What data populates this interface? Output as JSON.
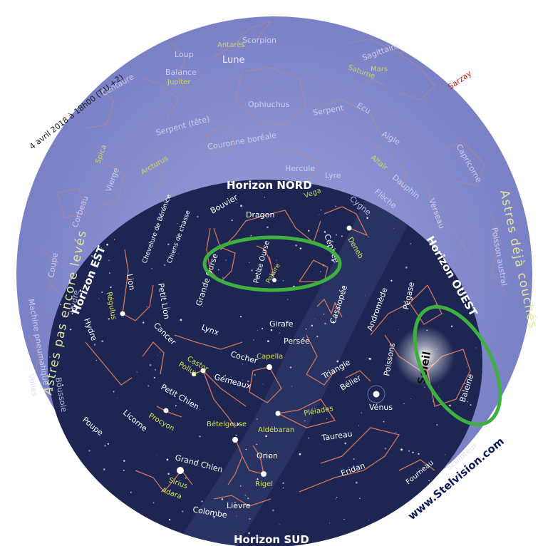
{
  "date_caption": "4 avril 2018 à 18h00  (T.U.+2)",
  "observer_name": "Sarzay",
  "credit": "www.Stelvision.com",
  "side_labels": {
    "not_yet_risen": "Astres pas encore levés",
    "already_set": "Astres déjà couchés"
  },
  "horizons": {
    "north": "Horizon NORD",
    "south": "Horizon SUD",
    "east": "Horizon EST",
    "west": "Horizon OUEST"
  },
  "highlight": "#3fb03f",
  "colors": {
    "sky_outer": "#8c93d2",
    "sky_inner": "#1d2552",
    "constellation_lines": "#d0755a",
    "star_names": "#d9e44a",
    "labels": "#ffffff",
    "observer": "#cc1a1a"
  },
  "outer_constellations": [
    "Scorpion",
    "Sagittaire",
    "Loup",
    "Balance",
    "Centaure",
    "Ophiuchus",
    "Serpent",
    "Ecu",
    "Serpent (tête)",
    "Couronne boréale",
    "Hercule",
    "Lyre",
    "Aigle",
    "Capricorne",
    "Dauphin",
    "Flèche",
    "Cygne",
    "Verseau",
    "Poisson austral",
    "Vierge",
    "Corbeau",
    "Coupe",
    "Hydre",
    "Machine pneumatique",
    "Voiles",
    "Boussole",
    "Sculpteur"
  ],
  "outer_objects": [
    "Antarès",
    "Lune",
    "Jupiter",
    "Mars",
    "Saturne",
    "Spica",
    "Arcturus",
    "Vega",
    "Altaïr"
  ],
  "inner_constellations": [
    "Dragon",
    "Bouvier",
    "Chevelure de Bérénice",
    "Chiens de chasse",
    "Grande Ourse",
    "Petite Ourse",
    "Céphée",
    "Lion",
    "Petit Lion",
    "Hydre",
    "Cancer",
    "Lynx",
    "Girafe",
    "Cassiopée",
    "Andromède",
    "Pégase",
    "Persée",
    "Cocher",
    "Gémeaux",
    "Triangle",
    "Bélier",
    "Poissons",
    "Baleine",
    "Petit Chien",
    "Licorne",
    "Taureau",
    "Orion",
    "Poupe",
    "Grand Chien",
    "Lièvre",
    "Colombe",
    "Eridan",
    "Fourneau"
  ],
  "inner_objects": [
    "Deneb",
    "Polaire",
    "Régulus",
    "Capella",
    "Castor",
    "Pollux",
    "Procyon",
    "Bételgeuse",
    "Aldébaran",
    "Pléiades",
    "Vénus",
    "Rigel",
    "Sirius",
    "Adara",
    "Soleil"
  ]
}
